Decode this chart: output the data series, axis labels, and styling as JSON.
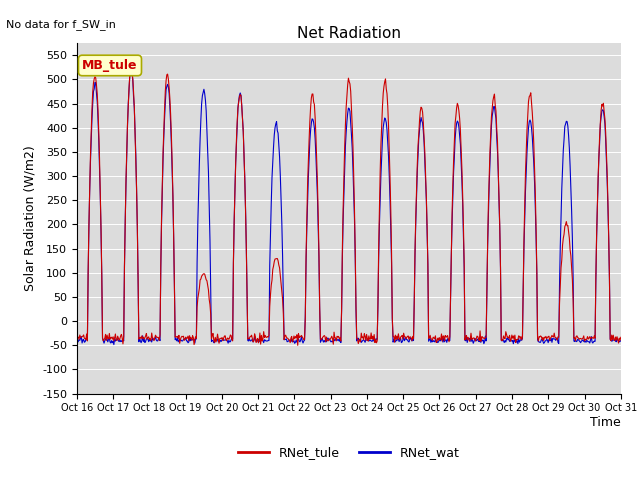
{
  "title": "Net Radiation",
  "xlabel": "Time",
  "ylabel": "Solar Radiation (W/m2)",
  "ylim": [
    -150,
    575
  ],
  "yticks": [
    -150,
    -100,
    -50,
    0,
    50,
    100,
    150,
    200,
    250,
    300,
    350,
    400,
    450,
    500,
    550
  ],
  "annotation_text": "No data for f_SW_in",
  "legend_label1": "RNet_tule",
  "legend_label2": "RNet_wat",
  "color1": "#cc0000",
  "color2": "#0000cc",
  "bg_color": "#dcdcdc",
  "box_label": "MB_tule",
  "box_facecolor": "#ffffcc",
  "box_edgecolor": "#aaaa00",
  "box_textcolor": "#cc0000",
  "n_days": 15,
  "start_day": 16,
  "end_day": 31,
  "figsize": [
    6.4,
    4.8
  ],
  "dpi": 100,
  "night_tule": -35,
  "night_wat": -40,
  "peaks_tule": [
    510,
    525,
    510,
    100,
    470,
    130,
    470,
    500,
    500,
    440,
    450,
    465,
    470,
    200,
    450
  ],
  "peaks_wat": [
    490,
    520,
    490,
    480,
    470,
    410,
    420,
    440,
    420,
    420,
    415,
    445,
    415,
    415,
    440
  ],
  "tick_labels": [
    "Oct 16",
    "Oct 17",
    "Oct 18",
    "Oct 19",
    "Oct 20",
    "Oct 21",
    "Oct 22",
    "Oct 23",
    "Oct 24",
    "Oct 25",
    "Oct 26",
    "Oct 27",
    "Oct 28",
    "Oct 29",
    "Oct 30",
    "Oct 31"
  ]
}
